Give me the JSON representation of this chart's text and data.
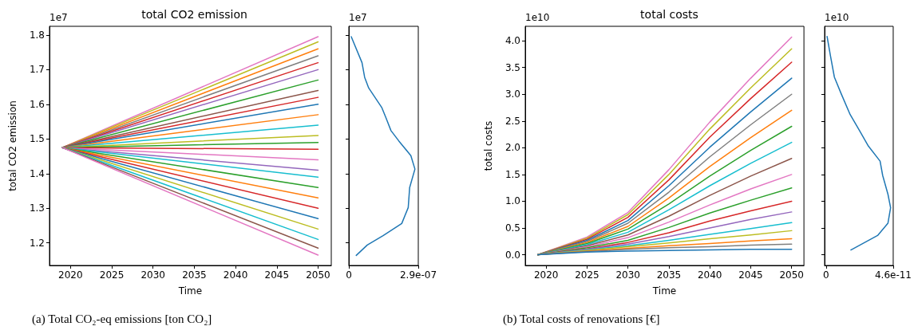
{
  "chart_data": [
    {
      "type": "line",
      "title": "total CO2 emission",
      "xlabel": "Time",
      "ylabel": "total CO2 emission",
      "marker": "none",
      "annotations": [
        "1e7",
        "(a) Total CO₂-eq emissions [ton CO₂]"
      ],
      "xlim": [
        2017.45,
        2051.6
      ],
      "xticks": [
        2020,
        2025,
        2030,
        2035,
        2040,
        2045,
        2050
      ],
      "ylim": [
        1.135,
        1.825
      ],
      "yticks": [
        1.2,
        1.3,
        1.4,
        1.5,
        1.6,
        1.7,
        1.8
      ],
      "x": [
        2019,
        2050
      ],
      "series": [
        {
          "color": "#e377c2",
          "values": [
            1.475,
            1.795
          ]
        },
        {
          "color": "#bcbd22",
          "values": [
            1.475,
            1.78
          ]
        },
        {
          "color": "#ff7f0e",
          "values": [
            1.475,
            1.76
          ]
        },
        {
          "color": "#7f7f7f",
          "values": [
            1.475,
            1.74
          ]
        },
        {
          "color": "#d62728",
          "values": [
            1.475,
            1.72
          ]
        },
        {
          "color": "#9467bd",
          "values": [
            1.475,
            1.7
          ]
        },
        {
          "color": "#2ca02c",
          "values": [
            1.475,
            1.67
          ]
        },
        {
          "color": "#8c564b",
          "values": [
            1.475,
            1.64
          ]
        },
        {
          "color": "#d62728",
          "values": [
            1.475,
            1.62
          ]
        },
        {
          "color": "#1f77b4",
          "values": [
            1.475,
            1.6
          ]
        },
        {
          "color": "#ff7f0e",
          "values": [
            1.475,
            1.57
          ]
        },
        {
          "color": "#17becf",
          "values": [
            1.475,
            1.54
          ]
        },
        {
          "color": "#bcbd22",
          "values": [
            1.475,
            1.51
          ]
        },
        {
          "color": "#2ca02c",
          "values": [
            1.475,
            1.49
          ]
        },
        {
          "color": "#d62728",
          "values": [
            1.475,
            1.47
          ]
        },
        {
          "color": "#e377c2",
          "values": [
            1.475,
            1.44
          ]
        },
        {
          "color": "#9467bd",
          "values": [
            1.475,
            1.41
          ]
        },
        {
          "color": "#17becf",
          "values": [
            1.475,
            1.39
          ]
        },
        {
          "color": "#2ca02c",
          "values": [
            1.475,
            1.36
          ]
        },
        {
          "color": "#ff7f0e",
          "values": [
            1.475,
            1.33
          ]
        },
        {
          "color": "#d62728",
          "values": [
            1.475,
            1.3
          ]
        },
        {
          "color": "#1f77b4",
          "values": [
            1.475,
            1.27
          ]
        },
        {
          "color": "#bcbd22",
          "values": [
            1.475,
            1.24
          ]
        },
        {
          "color": "#17becf",
          "values": [
            1.475,
            1.21
          ]
        },
        {
          "color": "#8c564b",
          "values": [
            1.475,
            1.185
          ]
        },
        {
          "color": "#e377c2",
          "values": [
            1.475,
            1.165
          ]
        }
      ]
    },
    {
      "type": "line",
      "tick_labels": "x",
      "marker": "none",
      "annotations": [
        "1e7"
      ],
      "xlim": [
        0,
        2.9e-07
      ],
      "xticks": [
        0,
        {
          "value": 2.9e-07,
          "label": "2.9e-07"
        }
      ],
      "ylim": [
        1.135,
        1.825
      ],
      "yticks": [
        1.2,
        1.3,
        1.4,
        1.5,
        1.6,
        1.7,
        1.8
      ],
      "series": [
        {
          "color": "#1f77b4",
          "x": [
            1e-08,
            5.5e-08,
            6.6e-08,
            8.3e-08,
            1.38e-07,
            1.54e-07,
            1.76e-07,
            2.09e-07,
            2.59e-07,
            2.76e-07,
            2.54e-07,
            2.48e-07,
            2.21e-07,
            1.43e-07,
            7.7e-08,
            3.1e-08
          ],
          "values": [
            1.795,
            1.72,
            1.678,
            1.647,
            1.59,
            1.563,
            1.524,
            1.494,
            1.452,
            1.413,
            1.36,
            1.302,
            1.256,
            1.221,
            1.194,
            1.164
          ]
        }
      ]
    },
    {
      "type": "line",
      "title": "total costs",
      "xlabel": "Time",
      "ylabel": "total costs",
      "marker": "none",
      "annotations": [
        "1e10",
        "(b) Total costs of renovations [€]"
      ],
      "xlim": [
        2017.45,
        2051.5
      ],
      "xticks": [
        2020,
        2025,
        2030,
        2035,
        2040,
        2045,
        2050
      ],
      "ylim": [
        -0.2,
        4.27
      ],
      "yticks": [
        {
          "value": 0,
          "label": "0.0"
        },
        0.5,
        {
          "value": 1,
          "label": "1.0"
        },
        1.5,
        {
          "value": 2,
          "label": "2.0"
        },
        2.5,
        {
          "value": 3,
          "label": "3.0"
        },
        3.5,
        {
          "value": 4,
          "label": "4.0"
        }
      ],
      "x": [
        2019,
        2025,
        2030,
        2035,
        2040,
        2045,
        2050
      ],
      "series": [
        {
          "color": "#e377c2",
          "values": [
            0,
            0.33,
            0.79,
            1.59,
            2.48,
            3.3,
            4.07
          ]
        },
        {
          "color": "#bcbd22",
          "values": [
            0,
            0.31,
            0.75,
            1.5,
            2.35,
            3.12,
            3.85
          ]
        },
        {
          "color": "#d62728",
          "values": [
            0,
            0.29,
            0.7,
            1.4,
            2.2,
            2.92,
            3.6
          ]
        },
        {
          "color": "#1f77b4",
          "values": [
            0,
            0.27,
            0.64,
            1.29,
            2.01,
            2.67,
            3.3
          ]
        },
        {
          "color": "#7f7f7f",
          "values": [
            0,
            0.25,
            0.59,
            1.17,
            1.83,
            2.43,
            3.0
          ]
        },
        {
          "color": "#ff7f0e",
          "values": [
            0,
            0.23,
            0.53,
            1.06,
            1.65,
            2.19,
            2.7
          ]
        },
        {
          "color": "#2ca02c",
          "values": [
            0,
            0.21,
            0.48,
            0.95,
            1.47,
            1.95,
            2.4
          ]
        },
        {
          "color": "#17becf",
          "values": [
            0,
            0.19,
            0.42,
            0.84,
            1.29,
            1.71,
            2.1
          ]
        },
        {
          "color": "#8c564b",
          "values": [
            0,
            0.17,
            0.37,
            0.72,
            1.11,
            1.47,
            1.8
          ]
        },
        {
          "color": "#e377c2",
          "values": [
            0,
            0.15,
            0.32,
            0.61,
            0.93,
            1.23,
            1.5
          ]
        },
        {
          "color": "#2ca02c",
          "values": [
            0,
            0.13,
            0.27,
            0.51,
            0.78,
            1.02,
            1.25
          ]
        },
        {
          "color": "#d62728",
          "values": [
            0,
            0.11,
            0.23,
            0.41,
            0.63,
            0.82,
            1.0
          ]
        },
        {
          "color": "#9467bd",
          "values": [
            0,
            0.1,
            0.2,
            0.34,
            0.5,
            0.66,
            0.8
          ]
        },
        {
          "color": "#17becf",
          "values": [
            0,
            0.09,
            0.17,
            0.27,
            0.38,
            0.49,
            0.6
          ]
        },
        {
          "color": "#bcbd22",
          "values": [
            0,
            0.08,
            0.15,
            0.22,
            0.3,
            0.37,
            0.45
          ]
        },
        {
          "color": "#ff7f0e",
          "values": [
            0,
            0.07,
            0.12,
            0.17,
            0.21,
            0.26,
            0.3
          ]
        },
        {
          "color": "#7f7f7f",
          "values": [
            0,
            0.06,
            0.1,
            0.13,
            0.15,
            0.18,
            0.2
          ]
        },
        {
          "color": "#1f77b4",
          "values": [
            0,
            0.05,
            0.07,
            0.08,
            0.09,
            0.1,
            0.1
          ]
        }
      ]
    },
    {
      "type": "line",
      "tick_labels": "x",
      "marker": "none",
      "annotations": [
        "1e10"
      ],
      "xlim": [
        -1e-12,
        4.6e-11
      ],
      "xticks": [
        0,
        {
          "value": 4.6e-11,
          "label": "4.6e-11"
        }
      ],
      "ylim": [
        -0.2,
        4.27
      ],
      "yticks": [
        0,
        0.5,
        1,
        1.5,
        2,
        2.5,
        3,
        3.5,
        4
      ],
      "series": [
        {
          "color": "#1f77b4",
          "x": [
            7e-13,
            3e-12,
            5.7e-12,
            1.02e-11,
            1.65e-11,
            2.27e-11,
            2.9e-11,
            3.7e-11,
            3.88e-11,
            4.24e-11,
            4.42e-11,
            4.24e-11,
            3.53e-11,
            1.7e-11
          ],
          "values": [
            4.08,
            3.72,
            3.32,
            3.02,
            2.62,
            2.33,
            2.03,
            1.75,
            1.48,
            1.13,
            0.88,
            0.59,
            0.36,
            0.09
          ]
        }
      ]
    }
  ]
}
